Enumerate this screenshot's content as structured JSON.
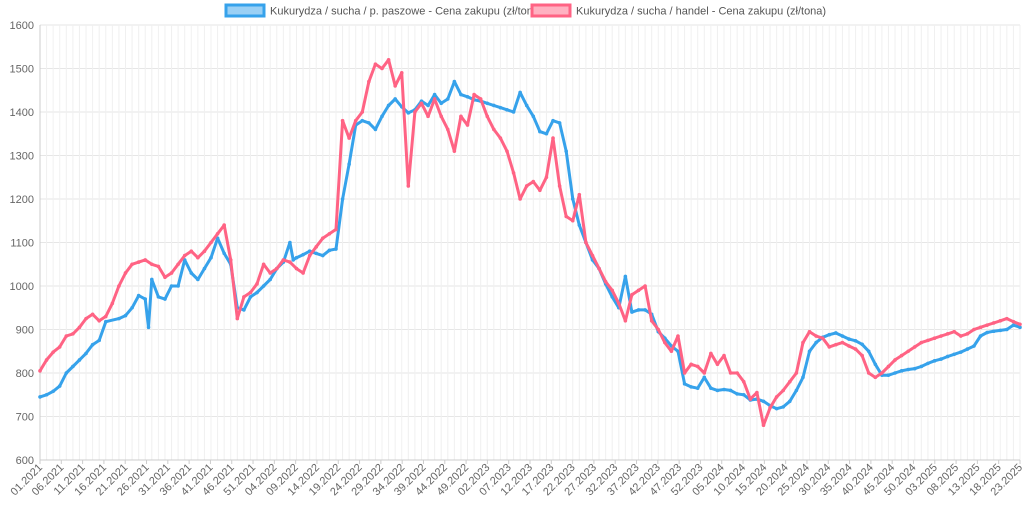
{
  "chart_data": {
    "type": "line",
    "title": "",
    "xlabel": "",
    "ylabel": "",
    "ylim": [
      600,
      1600
    ],
    "yticks": [
      600,
      700,
      800,
      900,
      1000,
      1100,
      1200,
      1300,
      1400,
      1500,
      1600
    ],
    "grid": true,
    "legend_position": "top-center",
    "x_tick_labels": [
      "01.2021",
      "06.2021",
      "11.2021",
      "16.2021",
      "21.2021",
      "26.2021",
      "31.2021",
      "36.2021",
      "41.2021",
      "46.2021",
      "51.2021",
      "04.2022",
      "09.2022",
      "14.2022",
      "19.2022",
      "24.2022",
      "29.2022",
      "34.2022",
      "39.2022",
      "44.2022",
      "49.2022",
      "02.2023",
      "07.2023",
      "12.2023",
      "17.2023",
      "22.2023",
      "27.2023",
      "32.2023",
      "37.2023",
      "42.2023",
      "47.2023",
      "52.2023",
      "05.2024",
      "10.2024",
      "15.2024",
      "20.2024",
      "25.2024",
      "30.2024",
      "35.2024",
      "40.2024",
      "45.2024",
      "50.2024",
      "03.2025",
      "08.2025",
      "13.2025",
      "18.2025",
      "23.2025"
    ],
    "series": [
      {
        "name": "Kukurydza / sucha / p. paszowe - Cena zakupu (zł/tona)",
        "color": "#36a2eb",
        "fill": "#9ad0f5",
        "points": [
          [
            0,
            745
          ],
          [
            1,
            750
          ],
          [
            2,
            758
          ],
          [
            3,
            770
          ],
          [
            4,
            800
          ],
          [
            5,
            815
          ],
          [
            6,
            830
          ],
          [
            7,
            845
          ],
          [
            8,
            865
          ],
          [
            9,
            875
          ],
          [
            10,
            918
          ],
          [
            12,
            925
          ],
          [
            13,
            932
          ],
          [
            14,
            950
          ],
          [
            15,
            978
          ],
          [
            16,
            970
          ],
          [
            16.5,
            905
          ],
          [
            17,
            1015
          ],
          [
            18,
            975
          ],
          [
            19,
            970
          ],
          [
            20,
            1000
          ],
          [
            21,
            1000
          ],
          [
            22,
            1060
          ],
          [
            23,
            1030
          ],
          [
            24,
            1015
          ],
          [
            25,
            1040
          ],
          [
            26,
            1065
          ],
          [
            27,
            1110
          ],
          [
            28,
            1075
          ],
          [
            29,
            1050
          ],
          [
            30,
            950
          ],
          [
            31,
            945
          ],
          [
            32,
            975
          ],
          [
            33,
            985
          ],
          [
            34,
            1000
          ],
          [
            35,
            1015
          ],
          [
            36,
            1040
          ],
          [
            37,
            1055
          ],
          [
            38,
            1100
          ],
          [
            38.5,
            1060
          ],
          [
            39,
            1065
          ],
          [
            40,
            1072
          ],
          [
            41,
            1080
          ],
          [
            42,
            1075
          ],
          [
            43,
            1070
          ],
          [
            44,
            1082
          ],
          [
            45,
            1085
          ],
          [
            46,
            1200
          ],
          [
            47,
            1280
          ],
          [
            48,
            1370
          ],
          [
            49,
            1380
          ],
          [
            50,
            1375
          ],
          [
            51,
            1360
          ],
          [
            52,
            1390
          ],
          [
            53,
            1415
          ],
          [
            54,
            1430
          ],
          [
            55,
            1412
          ],
          [
            56,
            1398
          ],
          [
            57,
            1405
          ],
          [
            58,
            1425
          ],
          [
            59,
            1415
          ],
          [
            60,
            1440
          ],
          [
            61,
            1420
          ],
          [
            62,
            1430
          ],
          [
            63,
            1470
          ],
          [
            64,
            1440
          ],
          [
            65,
            1435
          ],
          [
            66,
            1428
          ],
          [
            67,
            1425
          ],
          [
            68,
            1420
          ],
          [
            69,
            1415
          ],
          [
            70,
            1410
          ],
          [
            71,
            1405
          ],
          [
            72,
            1400
          ],
          [
            73,
            1445
          ],
          [
            74,
            1415
          ],
          [
            75,
            1390
          ],
          [
            76,
            1355
          ],
          [
            77,
            1350
          ],
          [
            78,
            1380
          ],
          [
            79,
            1375
          ],
          [
            80,
            1310
          ],
          [
            81,
            1200
          ],
          [
            82,
            1140
          ],
          [
            83,
            1100
          ],
          [
            84,
            1060
          ],
          [
            85,
            1040
          ],
          [
            86,
            1005
          ],
          [
            87,
            975
          ],
          [
            88,
            950
          ],
          [
            89,
            1022
          ],
          [
            90,
            940
          ],
          [
            91,
            945
          ],
          [
            92,
            945
          ],
          [
            93,
            935
          ],
          [
            94,
            895
          ],
          [
            95,
            880
          ],
          [
            96,
            862
          ],
          [
            97,
            850
          ],
          [
            98,
            775
          ],
          [
            99,
            768
          ],
          [
            100,
            765
          ],
          [
            101,
            790
          ],
          [
            102,
            765
          ],
          [
            103,
            760
          ],
          [
            104,
            762
          ],
          [
            105,
            760
          ],
          [
            106,
            752
          ],
          [
            107,
            750
          ],
          [
            108,
            738
          ],
          [
            109,
            740
          ],
          [
            110,
            735
          ],
          [
            111,
            725
          ],
          [
            112,
            718
          ],
          [
            113,
            722
          ],
          [
            114,
            735
          ],
          [
            115,
            760
          ],
          [
            116,
            790
          ],
          [
            117,
            850
          ],
          [
            118,
            870
          ],
          [
            119,
            882
          ],
          [
            120,
            888
          ],
          [
            121,
            892
          ],
          [
            122,
            885
          ],
          [
            123,
            878
          ],
          [
            124,
            874
          ],
          [
            125,
            866
          ],
          [
            126,
            850
          ],
          [
            127,
            820
          ],
          [
            128,
            795
          ],
          [
            129,
            795
          ],
          [
            130,
            800
          ],
          [
            131,
            805
          ],
          [
            132,
            808
          ],
          [
            133,
            810
          ],
          [
            134,
            815
          ],
          [
            135,
            822
          ],
          [
            136,
            828
          ],
          [
            137,
            832
          ],
          [
            138,
            838
          ],
          [
            139,
            843
          ],
          [
            140,
            848
          ],
          [
            141,
            855
          ],
          [
            142,
            862
          ],
          [
            143,
            885
          ],
          [
            144,
            893
          ],
          [
            145,
            896
          ],
          [
            146,
            898
          ],
          [
            147,
            900
          ],
          [
            148,
            910
          ],
          [
            149,
            905
          ]
        ]
      },
      {
        "name": "Kukurydza / sucha / handel - Cena zakupu (zł/tona)",
        "color": "#ff6384",
        "fill": "#ffb1c1",
        "points": [
          [
            0,
            805
          ],
          [
            1,
            830
          ],
          [
            2,
            848
          ],
          [
            3,
            860
          ],
          [
            4,
            885
          ],
          [
            5,
            890
          ],
          [
            6,
            905
          ],
          [
            7,
            925
          ],
          [
            8,
            935
          ],
          [
            9,
            920
          ],
          [
            10,
            930
          ],
          [
            11,
            960
          ],
          [
            12,
            1000
          ],
          [
            13,
            1030
          ],
          [
            14,
            1050
          ],
          [
            15,
            1055
          ],
          [
            16,
            1060
          ],
          [
            17,
            1050
          ],
          [
            18,
            1045
          ],
          [
            19,
            1020
          ],
          [
            20,
            1030
          ],
          [
            21,
            1050
          ],
          [
            22,
            1070
          ],
          [
            23,
            1080
          ],
          [
            24,
            1065
          ],
          [
            25,
            1080
          ],
          [
            26,
            1100
          ],
          [
            27,
            1120
          ],
          [
            28,
            1140
          ],
          [
            29,
            1060
          ],
          [
            30,
            925
          ],
          [
            31,
            975
          ],
          [
            32,
            985
          ],
          [
            33,
            1005
          ],
          [
            34,
            1050
          ],
          [
            35,
            1030
          ],
          [
            36,
            1040
          ],
          [
            37,
            1060
          ],
          [
            38,
            1055
          ],
          [
            39,
            1040
          ],
          [
            40,
            1030
          ],
          [
            41,
            1070
          ],
          [
            42,
            1090
          ],
          [
            43,
            1110
          ],
          [
            44,
            1120
          ],
          [
            45,
            1130
          ],
          [
            46,
            1380
          ],
          [
            47,
            1340
          ],
          [
            48,
            1380
          ],
          [
            49,
            1400
          ],
          [
            50,
            1470
          ],
          [
            51,
            1510
          ],
          [
            52,
            1500
          ],
          [
            53,
            1520
          ],
          [
            54,
            1460
          ],
          [
            55,
            1490
          ],
          [
            56,
            1230
          ],
          [
            57,
            1400
          ],
          [
            58,
            1420
          ],
          [
            59,
            1390
          ],
          [
            60,
            1430
          ],
          [
            61,
            1390
          ],
          [
            62,
            1360
          ],
          [
            63,
            1310
          ],
          [
            64,
            1390
          ],
          [
            65,
            1370
          ],
          [
            66,
            1440
          ],
          [
            67,
            1430
          ],
          [
            68,
            1390
          ],
          [
            69,
            1360
          ],
          [
            70,
            1340
          ],
          [
            71,
            1310
          ],
          [
            72,
            1260
          ],
          [
            73,
            1200
          ],
          [
            74,
            1230
          ],
          [
            75,
            1240
          ],
          [
            76,
            1220
          ],
          [
            77,
            1250
          ],
          [
            78,
            1340
          ],
          [
            79,
            1230
          ],
          [
            80,
            1160
          ],
          [
            81,
            1150
          ],
          [
            82,
            1210
          ],
          [
            83,
            1100
          ],
          [
            84,
            1070
          ],
          [
            85,
            1040
          ],
          [
            86,
            1010
          ],
          [
            87,
            990
          ],
          [
            88,
            960
          ],
          [
            89,
            920
          ],
          [
            90,
            980
          ],
          [
            91,
            990
          ],
          [
            92,
            1000
          ],
          [
            93,
            920
          ],
          [
            94,
            900
          ],
          [
            95,
            870
          ],
          [
            96,
            850
          ],
          [
            97,
            885
          ],
          [
            98,
            800
          ],
          [
            99,
            820
          ],
          [
            100,
            815
          ],
          [
            101,
            800
          ],
          [
            102,
            845
          ],
          [
            103,
            820
          ],
          [
            104,
            840
          ],
          [
            105,
            800
          ],
          [
            106,
            800
          ],
          [
            107,
            780
          ],
          [
            108,
            740
          ],
          [
            109,
            755
          ],
          [
            110,
            680
          ],
          [
            111,
            720
          ],
          [
            112,
            745
          ],
          [
            113,
            760
          ],
          [
            114,
            780
          ],
          [
            115,
            800
          ],
          [
            116,
            870
          ],
          [
            117,
            895
          ],
          [
            118,
            885
          ],
          [
            119,
            880
          ],
          [
            120,
            860
          ],
          [
            121,
            865
          ],
          [
            122,
            870
          ],
          [
            123,
            862
          ],
          [
            124,
            855
          ],
          [
            125,
            840
          ],
          [
            126,
            800
          ],
          [
            127,
            790
          ],
          [
            128,
            800
          ],
          [
            129,
            815
          ],
          [
            130,
            830
          ],
          [
            131,
            840
          ],
          [
            132,
            850
          ],
          [
            133,
            860
          ],
          [
            134,
            870
          ],
          [
            135,
            875
          ],
          [
            136,
            880
          ],
          [
            137,
            885
          ],
          [
            138,
            890
          ],
          [
            139,
            895
          ],
          [
            140,
            885
          ],
          [
            141,
            890
          ],
          [
            142,
            900
          ],
          [
            143,
            905
          ],
          [
            144,
            910
          ],
          [
            145,
            915
          ],
          [
            146,
            920
          ],
          [
            147,
            925
          ],
          [
            148,
            918
          ],
          [
            149,
            912
          ]
        ]
      }
    ]
  }
}
